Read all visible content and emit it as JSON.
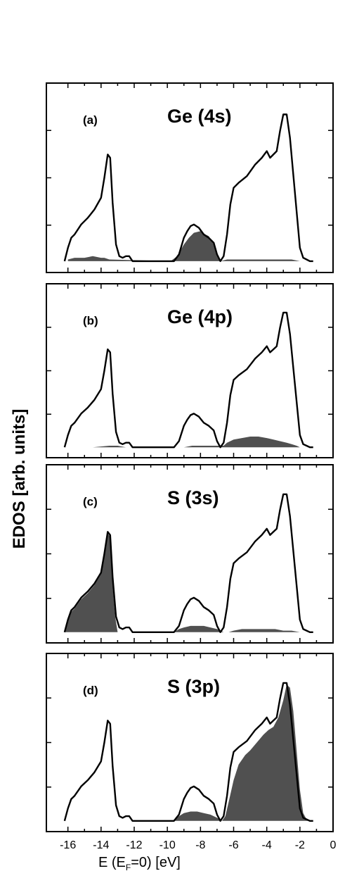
{
  "figure": {
    "ylabel": "EDOS  [arb. units]",
    "xlabel_pre": "E  (E",
    "xlabel_sub": "F",
    "xlabel_post": "=0)  [eV]"
  },
  "colors": {
    "fill": "#505050",
    "line": "#000000",
    "frame": "#000000"
  },
  "chart_data": [
    {
      "type": "area",
      "panel_label": "(a)",
      "title": "Ge (4s)",
      "x_ticks": [],
      "xlim": [
        -17.3,
        0
      ],
      "ylim": [
        0,
        1
      ],
      "grid": false,
      "series": [
        {
          "kind": "line",
          "x": [
            -16.2,
            -16.0,
            -15.8,
            -15.6,
            -15.2,
            -14.8,
            -14.4,
            -14.0,
            -13.8,
            -13.6,
            -13.45,
            -13.3,
            -13.1,
            -12.9,
            -12.7,
            -12.5,
            -12.3,
            -12.1,
            -11.9,
            -9.6,
            -9.3,
            -9.0,
            -8.8,
            -8.6,
            -8.4,
            -8.1,
            -7.8,
            -7.5,
            -7.2,
            -7.0,
            -6.8,
            -6.6,
            -6.4,
            -6.2,
            -6.0,
            -5.7,
            -5.2,
            -4.7,
            -4.3,
            -4.0,
            -3.8,
            -3.6,
            -3.4,
            -3.2,
            -3.0,
            -2.8,
            -2.6,
            -2.4,
            -2.2,
            -2.0,
            -1.8,
            -1.6,
            -1.4,
            -1.2
          ],
          "y": [
            0.0,
            0.08,
            0.14,
            0.16,
            0.22,
            0.26,
            0.31,
            0.38,
            0.5,
            0.64,
            0.62,
            0.35,
            0.1,
            0.03,
            0.02,
            0.03,
            0.03,
            0.0,
            0.0,
            0.0,
            0.04,
            0.14,
            0.18,
            0.21,
            0.22,
            0.2,
            0.16,
            0.14,
            0.11,
            0.04,
            0.0,
            0.03,
            0.16,
            0.34,
            0.44,
            0.47,
            0.51,
            0.58,
            0.62,
            0.66,
            0.62,
            0.64,
            0.66,
            0.78,
            0.88,
            0.88,
            0.74,
            0.52,
            0.3,
            0.08,
            0.02,
            0.01,
            0.0,
            0.0
          ]
        },
        {
          "kind": "fill",
          "x": [
            -16.0,
            -15.6,
            -15.0,
            -14.5,
            -14.0,
            -13.8,
            -13.5,
            -9.8,
            -9.4,
            -9.0,
            -8.7,
            -8.4,
            -8.0,
            -7.7,
            -7.5,
            -7.2,
            -7.0,
            -6.8,
            -6.4,
            -6.0,
            -5.5,
            -5.0,
            -4.5,
            -4.0,
            -3.5,
            -3.0,
            -2.5,
            -2.0
          ],
          "y": [
            0.01,
            0.02,
            0.02,
            0.03,
            0.02,
            0.02,
            0.01,
            0.0,
            0.03,
            0.1,
            0.14,
            0.17,
            0.18,
            0.16,
            0.15,
            0.1,
            0.03,
            0.0,
            0.01,
            0.01,
            0.01,
            0.01,
            0.01,
            0.01,
            0.01,
            0.01,
            0.01,
            0.0
          ]
        }
      ]
    },
    {
      "type": "area",
      "panel_label": "(b)",
      "title": "Ge (4p)",
      "x_ticks": [],
      "xlim": [
        -17.3,
        0
      ],
      "ylim": [
        0,
        1
      ],
      "grid": false,
      "series": [
        {
          "kind": "line",
          "x": [
            -16.2,
            -16.0,
            -15.8,
            -15.6,
            -15.2,
            -14.8,
            -14.4,
            -14.0,
            -13.8,
            -13.6,
            -13.45,
            -13.3,
            -13.1,
            -12.9,
            -12.7,
            -12.5,
            -12.3,
            -12.1,
            -11.9,
            -9.6,
            -9.3,
            -9.0,
            -8.8,
            -8.6,
            -8.4,
            -8.1,
            -7.8,
            -7.5,
            -7.2,
            -7.0,
            -6.8,
            -6.6,
            -6.4,
            -6.2,
            -6.0,
            -5.7,
            -5.2,
            -4.7,
            -4.3,
            -4.0,
            -3.8,
            -3.6,
            -3.4,
            -3.2,
            -3.0,
            -2.8,
            -2.6,
            -2.4,
            -2.2,
            -2.0,
            -1.8,
            -1.6,
            -1.4,
            -1.2
          ],
          "y": [
            0.0,
            0.08,
            0.14,
            0.16,
            0.22,
            0.26,
            0.31,
            0.38,
            0.5,
            0.64,
            0.62,
            0.35,
            0.1,
            0.03,
            0.02,
            0.03,
            0.03,
            0.0,
            0.0,
            0.0,
            0.04,
            0.14,
            0.18,
            0.21,
            0.22,
            0.2,
            0.16,
            0.14,
            0.11,
            0.04,
            0.0,
            0.03,
            0.16,
            0.34,
            0.44,
            0.47,
            0.51,
            0.58,
            0.62,
            0.66,
            0.62,
            0.64,
            0.66,
            0.78,
            0.88,
            0.88,
            0.74,
            0.52,
            0.3,
            0.08,
            0.02,
            0.01,
            0.0,
            0.0
          ]
        },
        {
          "kind": "fill",
          "x": [
            -14.5,
            -13.5,
            -13.0,
            -12.5,
            -9.0,
            -8.5,
            -8.0,
            -7.5,
            -7.0,
            -6.6,
            -6.4,
            -6.0,
            -5.5,
            -5.0,
            -4.5,
            -4.0,
            -3.6,
            -3.2,
            -2.8,
            -2.5,
            -2.2,
            -2.0
          ],
          "y": [
            0.0,
            0.01,
            0.01,
            0.0,
            0.0,
            0.01,
            0.01,
            0.01,
            0.01,
            0.01,
            0.03,
            0.05,
            0.06,
            0.07,
            0.07,
            0.06,
            0.05,
            0.04,
            0.03,
            0.02,
            0.01,
            0.0
          ]
        }
      ]
    },
    {
      "type": "area",
      "panel_label": "(c)",
      "title": "S (3s)",
      "x_ticks": [],
      "xlim": [
        -17.3,
        0
      ],
      "ylim": [
        0,
        1
      ],
      "grid": false,
      "series": [
        {
          "kind": "line",
          "x": [
            -16.2,
            -16.0,
            -15.8,
            -15.6,
            -15.2,
            -14.8,
            -14.4,
            -14.0,
            -13.8,
            -13.6,
            -13.45,
            -13.3,
            -13.1,
            -12.9,
            -12.7,
            -12.5,
            -12.3,
            -12.1,
            -11.9,
            -9.6,
            -9.3,
            -9.0,
            -8.8,
            -8.6,
            -8.4,
            -8.1,
            -7.8,
            -7.5,
            -7.2,
            -7.0,
            -6.8,
            -6.6,
            -6.4,
            -6.2,
            -6.0,
            -5.7,
            -5.2,
            -4.7,
            -4.3,
            -4.0,
            -3.8,
            -3.6,
            -3.4,
            -3.2,
            -3.0,
            -2.8,
            -2.6,
            -2.4,
            -2.2,
            -2.0,
            -1.8,
            -1.6,
            -1.4,
            -1.2
          ],
          "y": [
            0.0,
            0.08,
            0.14,
            0.16,
            0.22,
            0.26,
            0.31,
            0.38,
            0.5,
            0.64,
            0.62,
            0.35,
            0.1,
            0.03,
            0.02,
            0.03,
            0.03,
            0.0,
            0.0,
            0.0,
            0.04,
            0.14,
            0.18,
            0.21,
            0.22,
            0.2,
            0.16,
            0.14,
            0.11,
            0.04,
            0.0,
            0.03,
            0.16,
            0.34,
            0.44,
            0.47,
            0.51,
            0.58,
            0.62,
            0.66,
            0.62,
            0.64,
            0.66,
            0.78,
            0.88,
            0.88,
            0.74,
            0.52,
            0.3,
            0.08,
            0.02,
            0.01,
            0.0,
            0.0
          ]
        },
        {
          "kind": "fill",
          "x": [
            -16.2,
            -16.0,
            -15.8,
            -15.6,
            -15.2,
            -14.8,
            -14.4,
            -14.0,
            -13.8,
            -13.6,
            -13.45,
            -13.3,
            -13.15,
            -13.0,
            -9.6,
            -9.3,
            -9.0,
            -8.6,
            -8.2,
            -7.8,
            -7.4,
            -7.0,
            -6.6,
            -6.3,
            -6.0,
            -5.5,
            -5.0,
            -4.5,
            -4.0,
            -3.5,
            -3.0,
            -2.5,
            -2.0
          ],
          "y": [
            0.0,
            0.07,
            0.13,
            0.15,
            0.21,
            0.25,
            0.3,
            0.37,
            0.49,
            0.63,
            0.61,
            0.3,
            0.1,
            0.0,
            0.0,
            0.02,
            0.03,
            0.04,
            0.04,
            0.04,
            0.03,
            0.02,
            0.0,
            0.0,
            0.01,
            0.02,
            0.02,
            0.02,
            0.02,
            0.02,
            0.01,
            0.01,
            0.0
          ]
        }
      ]
    },
    {
      "type": "area",
      "panel_label": "(d)",
      "title": "S (3p)",
      "x_ticks": [
        "-16",
        "-14",
        "-12",
        "-10",
        "-8",
        "-6",
        "-4",
        "-2",
        "0"
      ],
      "x_tick_values": [
        -16,
        -14,
        -12,
        -10,
        -8,
        -6,
        -4,
        -2,
        0
      ],
      "xlim": [
        -17.3,
        0
      ],
      "ylim": [
        0,
        1
      ],
      "grid": false,
      "series": [
        {
          "kind": "line",
          "x": [
            -16.2,
            -16.0,
            -15.8,
            -15.6,
            -15.2,
            -14.8,
            -14.4,
            -14.0,
            -13.8,
            -13.6,
            -13.45,
            -13.3,
            -13.1,
            -12.9,
            -12.7,
            -12.5,
            -12.3,
            -12.1,
            -11.9,
            -9.6,
            -9.3,
            -9.0,
            -8.8,
            -8.6,
            -8.4,
            -8.1,
            -7.8,
            -7.5,
            -7.2,
            -7.0,
            -6.8,
            -6.6,
            -6.4,
            -6.2,
            -6.0,
            -5.7,
            -5.2,
            -4.7,
            -4.3,
            -4.0,
            -3.8,
            -3.6,
            -3.4,
            -3.2,
            -3.0,
            -2.8,
            -2.6,
            -2.4,
            -2.2,
            -2.0,
            -1.8,
            -1.6,
            -1.4,
            -1.2
          ],
          "y": [
            0.0,
            0.08,
            0.14,
            0.16,
            0.22,
            0.26,
            0.31,
            0.38,
            0.5,
            0.64,
            0.62,
            0.35,
            0.1,
            0.03,
            0.02,
            0.03,
            0.03,
            0.0,
            0.0,
            0.0,
            0.04,
            0.14,
            0.18,
            0.21,
            0.22,
            0.2,
            0.16,
            0.14,
            0.11,
            0.04,
            0.0,
            0.03,
            0.16,
            0.34,
            0.44,
            0.47,
            0.51,
            0.58,
            0.62,
            0.66,
            0.62,
            0.64,
            0.66,
            0.78,
            0.88,
            0.88,
            0.74,
            0.52,
            0.3,
            0.08,
            0.02,
            0.01,
            0.0,
            0.0
          ]
        },
        {
          "kind": "fill",
          "x": [
            -9.6,
            -9.3,
            -9.0,
            -8.6,
            -8.2,
            -7.8,
            -7.4,
            -7.0,
            -6.7,
            -6.5,
            -6.3,
            -6.0,
            -5.7,
            -5.3,
            -5.0,
            -4.6,
            -4.2,
            -3.9,
            -3.6,
            -3.3,
            -3.0,
            -2.8,
            -2.6,
            -2.4,
            -2.2,
            -2.0,
            -1.8,
            -1.6,
            -1.4
          ],
          "y": [
            0.0,
            0.03,
            0.05,
            0.06,
            0.06,
            0.05,
            0.04,
            0.02,
            0.0,
            0.03,
            0.12,
            0.26,
            0.36,
            0.42,
            0.45,
            0.5,
            0.55,
            0.58,
            0.6,
            0.66,
            0.77,
            0.87,
            0.85,
            0.7,
            0.45,
            0.2,
            0.05,
            0.01,
            0.0
          ]
        }
      ]
    }
  ]
}
